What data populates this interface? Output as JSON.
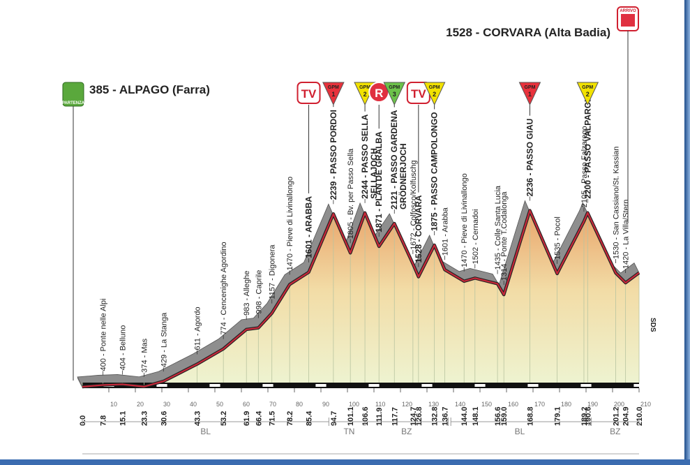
{
  "start": {
    "label": "385 - ALPAGO (Farra)",
    "icon": "PARTENZA"
  },
  "finish": {
    "label": "1528 - CORVARA (Alta Badia)",
    "icon": "ARRIVO"
  },
  "profile": {
    "type": "elevation-profile",
    "xlim": [
      0,
      210
    ],
    "xticks": [
      10,
      20,
      30,
      40,
      50,
      60,
      70,
      80,
      90,
      100,
      110,
      120,
      130,
      140,
      150,
      160,
      170,
      180,
      190,
      200,
      210
    ],
    "credit": "SDS",
    "waypoints": [
      {
        "km": 0,
        "km_label": "0.0",
        "alt": 385
      },
      {
        "km": 7.8,
        "alt": 400,
        "label": "400 - Ponte nelle Alpi"
      },
      {
        "km": 15.1,
        "alt": 404,
        "label": "404 - Belluno"
      },
      {
        "km": 23.3,
        "alt": 374,
        "label": "374 - Mas"
      },
      {
        "km": 30.6,
        "alt": 429,
        "label": "429 - La Stanga"
      },
      {
        "km": 43.3,
        "alt": 611,
        "label": "611 - Agordo"
      },
      {
        "km": 53.2,
        "alt": 774,
        "label": "774 - Cencenighe Agordino"
      },
      {
        "km": 61.9,
        "alt": 983,
        "label": "983 - Alleghe"
      },
      {
        "km": 66.4,
        "alt": 998,
        "label": "998 - Caprile"
      },
      {
        "km": 71.5,
        "alt": 1157,
        "label": "1157 - Digonera"
      },
      {
        "km": 78.2,
        "alt": 1470,
        "label": "1470 - Pieve di Livinallongo"
      },
      {
        "km": 85.4,
        "alt": 1601,
        "label": "1601 - ARABBA",
        "bold": true,
        "marker": {
          "kind": "tv",
          "text": "TV"
        }
      },
      {
        "km": 94.7,
        "alt": 2239,
        "label": "2239 - PASSO PORDOI",
        "bold": true,
        "marker": {
          "kind": "gpm",
          "text": "GPM",
          "cat": "1",
          "color": "#e8323c"
        }
      },
      {
        "km": 101.1,
        "alt": 1805,
        "label": "1805 - Bv. per Passo Sella"
      },
      {
        "km": 106.6,
        "alt": 2244,
        "label": "2244 - PASSO SELLA",
        "sub": "SELLAJOCH",
        "bold": true,
        "marker": {
          "kind": "gpm",
          "text": "GPM",
          "cat": "2",
          "color": "#f2e200"
        }
      },
      {
        "km": 111.9,
        "alt": 1871,
        "label": "1871 - PLAN DE GRALBA",
        "bold": true,
        "marker": {
          "kind": "r",
          "text": "R"
        }
      },
      {
        "km": 117.7,
        "alt": 2121,
        "label": "2121 - PASSO GARDENA",
        "sub": "GRÖDNERJOCH",
        "bold": true,
        "marker": {
          "kind": "gpm",
          "text": "GPM",
          "cat": "3",
          "color": "#6cc24a"
        }
      },
      {
        "km": 124.7,
        "alt": 1672,
        "label": "1672 - Colfosco/Kolfuschg"
      },
      {
        "km": 126.8,
        "alt": 1528,
        "label": "1528 - CORVARA",
        "bold": true,
        "marker": {
          "kind": "tv",
          "text": "TV"
        }
      },
      {
        "km": 132.8,
        "alt": 1875,
        "label": "1875 - PASSO CAMPOLONGO",
        "bold": true,
        "marker": {
          "kind": "gpm",
          "text": "GPM",
          "cat": "2",
          "color": "#f2e200"
        }
      },
      {
        "km": 136.7,
        "alt": 1601,
        "label": "1601 - Arabba"
      },
      {
        "km": 144.0,
        "km_label": "144.0",
        "alt": 1470,
        "label": "1470 - Pieve di Livinallongo"
      },
      {
        "km": 148.1,
        "alt": 1502,
        "label": "1502 - Cernadoi"
      },
      {
        "km": 156.6,
        "alt": 1435,
        "label": "1435 - Colle Santa Lucia"
      },
      {
        "km": 159.0,
        "km_label": "159.0",
        "alt": 1314,
        "label": "1314 - Ponte T.Codalonga"
      },
      {
        "km": 168.8,
        "alt": 2236,
        "label": "2236 - PASSO GIAU",
        "bold": true,
        "marker": {
          "kind": "gpm",
          "text": "GPM",
          "cat": "1",
          "color": "#e8323c"
        }
      },
      {
        "km": 179.1,
        "alt": 1535,
        "label": "1535 - Pocol"
      },
      {
        "km": 189.2,
        "alt": 2105,
        "label": "2105 - Passo Falzarego"
      },
      {
        "km": 190.6,
        "alt": 2200,
        "label": "2200 - PASSO VALPAROLA",
        "bold": true,
        "marker": {
          "kind": "gpm",
          "text": "GPM",
          "cat": "2",
          "color": "#f2e200"
        }
      },
      {
        "km": 201.2,
        "alt": 1530,
        "label": "1530 - San Cassiano/St. Kassian"
      },
      {
        "km": 204.9,
        "alt": 1420,
        "label": "1420 - La Villa/Stern"
      },
      {
        "km": 210,
        "km_label": "210.0",
        "alt": 1528
      }
    ],
    "regions": [
      {
        "name": "BL",
        "from": 0,
        "to": 93
      },
      {
        "name": "TN",
        "from": 94.7,
        "to": 106.6
      },
      {
        "name": "BZ",
        "from": 106.6,
        "to": 138
      },
      {
        "name": "BL",
        "from": 139,
        "to": 191
      },
      {
        "name": "BZ",
        "from": 192,
        "to": 210
      }
    ]
  }
}
